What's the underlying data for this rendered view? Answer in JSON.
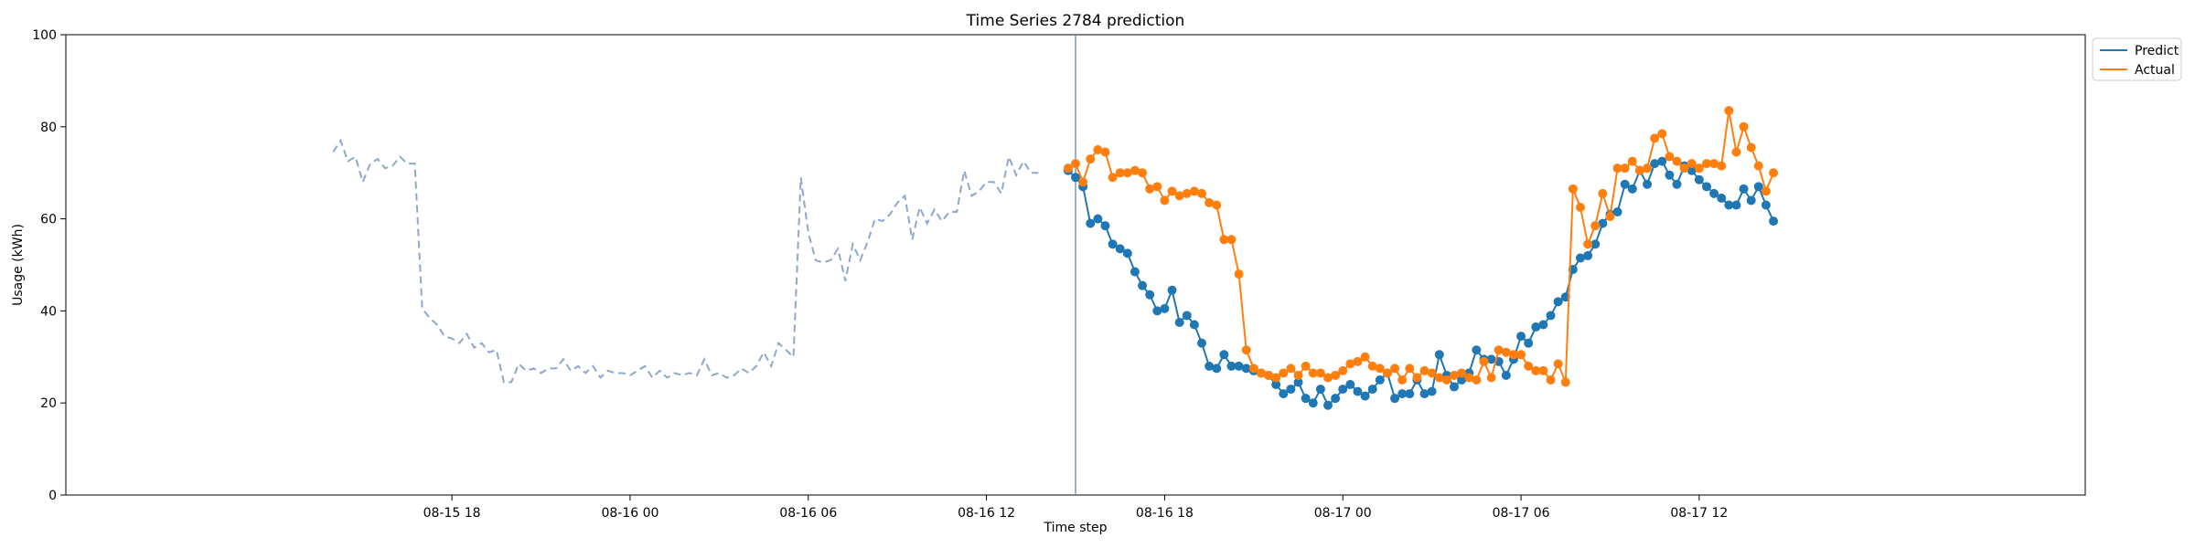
{
  "chart_data": {
    "type": "line",
    "title": "Time Series 2784 prediction",
    "xlabel": "Time step",
    "ylabel": "Usage (kWh)",
    "ylim": [
      0,
      100
    ],
    "xlim_hours": [
      -13.0,
      55.0
    ],
    "x_tick_labels": [
      "08-15 18",
      "08-16 00",
      "08-16 06",
      "08-16 12",
      "08-16 18",
      "08-17 00",
      "08-17 06",
      "08-17 12"
    ],
    "y_tick_labels": [
      "0",
      "20",
      "40",
      "60",
      "80",
      "100"
    ],
    "forecast_start": "08-16 15:00",
    "legend": {
      "position": "outside-top-right",
      "entries": [
        "Predict",
        "Actual"
      ]
    },
    "colors": {
      "history": "#8da8cc",
      "predict": "#1f77b4",
      "actual": "#ff7f0e",
      "divider": "#7a95c4"
    },
    "history": {
      "start": "08-15 14:00",
      "step_minutes": 15,
      "values": [
        74.5,
        77.0,
        72.5,
        73.5,
        68.0,
        72.0,
        73.0,
        71.0,
        71.5,
        73.5,
        72.0,
        72.0,
        40.5,
        38.5,
        37.0,
        34.5,
        34.0,
        33.0,
        35.0,
        32.0,
        33.0,
        31.0,
        31.5,
        24.5,
        24.5,
        28.5,
        27.0,
        27.5,
        26.5,
        27.5,
        27.5,
        29.5,
        27.0,
        28.0,
        26.5,
        28.0,
        25.5,
        27.0,
        26.5,
        26.5,
        26.0,
        27.0,
        28.0,
        25.5,
        27.0,
        25.5,
        26.5,
        26.0,
        26.5,
        26.0,
        29.5,
        26.0,
        26.5,
        25.5,
        26.0,
        27.5,
        26.5,
        28.0,
        31.0,
        28.0,
        33.0,
        31.5,
        30.0,
        69.0,
        57.0,
        51.0,
        50.5,
        51.0,
        53.5,
        46.5,
        54.5,
        51.0,
        55.0,
        60.0,
        59.5,
        61.0,
        63.5,
        65.0,
        55.5,
        62.5,
        59.0,
        62.0,
        59.5,
        61.5,
        61.5,
        70.5,
        65.0,
        66.0,
        68.0,
        68.0,
        65.5,
        73.5,
        69.5,
        72.5,
        70.0,
        70.0
      ]
    },
    "series": [
      {
        "name": "Predict",
        "start": "08-16 14:45",
        "step_minutes": 15,
        "values": [
          70.5,
          69.0,
          67.0,
          59.0,
          60.0,
          58.5,
          54.5,
          53.5,
          52.5,
          48.5,
          45.5,
          43.5,
          40.0,
          40.5,
          44.5,
          37.5,
          39.0,
          37.0,
          33.0,
          28.0,
          27.5,
          30.5,
          28.0,
          28.0,
          27.5,
          27.0,
          26.5,
          26.0,
          24.0,
          22.0,
          23.0,
          24.5,
          21.0,
          20.0,
          23.0,
          19.5,
          21.0,
          23.0,
          24.0,
          22.5,
          21.5,
          23.0,
          25.0,
          26.5,
          21.0,
          22.0,
          22.0,
          25.0,
          22.0,
          22.5,
          30.5,
          26.0,
          23.5,
          25.0,
          26.5,
          31.5,
          29.5,
          29.5,
          29.0,
          26.0,
          29.5,
          34.5,
          33.0,
          36.5,
          37.0,
          39.0,
          42.0,
          43.0,
          49.0,
          51.5,
          52.0,
          54.5,
          59.0,
          61.0,
          61.5,
          67.5,
          66.5,
          70.5,
          67.5,
          72.0,
          72.5,
          69.5,
          67.5,
          71.5,
          70.5,
          68.5,
          67.0,
          65.5,
          64.5,
          63.0,
          63.0,
          66.5,
          64.0,
          67.0,
          63.0,
          59.5
        ]
      },
      {
        "name": "Actual",
        "start": "08-16 14:45",
        "step_minutes": 15,
        "values": [
          71.0,
          72.0,
          68.0,
          73.0,
          75.0,
          74.5,
          69.0,
          70.0,
          70.0,
          70.5,
          70.0,
          66.5,
          67.0,
          64.0,
          66.0,
          65.0,
          65.5,
          66.0,
          65.5,
          63.5,
          63.0,
          55.5,
          55.5,
          48.0,
          31.5,
          27.5,
          26.5,
          26.0,
          25.5,
          26.5,
          27.5,
          26.0,
          28.0,
          26.5,
          26.5,
          25.5,
          26.0,
          27.0,
          28.5,
          29.0,
          30.0,
          28.0,
          27.5,
          26.5,
          27.5,
          25.0,
          27.5,
          25.5,
          27.0,
          26.5,
          25.5,
          25.0,
          26.0,
          26.5,
          25.5,
          25.0,
          29.0,
          25.5,
          31.5,
          31.0,
          30.5,
          30.5,
          28.0,
          27.0,
          27.0,
          25.0,
          28.5,
          24.5,
          66.5,
          62.5,
          54.5,
          58.5,
          65.5,
          60.5,
          71.0,
          71.0,
          72.5,
          70.5,
          71.0,
          77.5,
          78.5,
          73.5,
          72.5,
          71.0,
          72.0,
          71.0,
          72.0,
          72.0,
          71.5,
          83.5,
          74.5,
          80.0,
          75.5,
          71.5,
          66.0,
          70.0
        ]
      }
    ]
  }
}
